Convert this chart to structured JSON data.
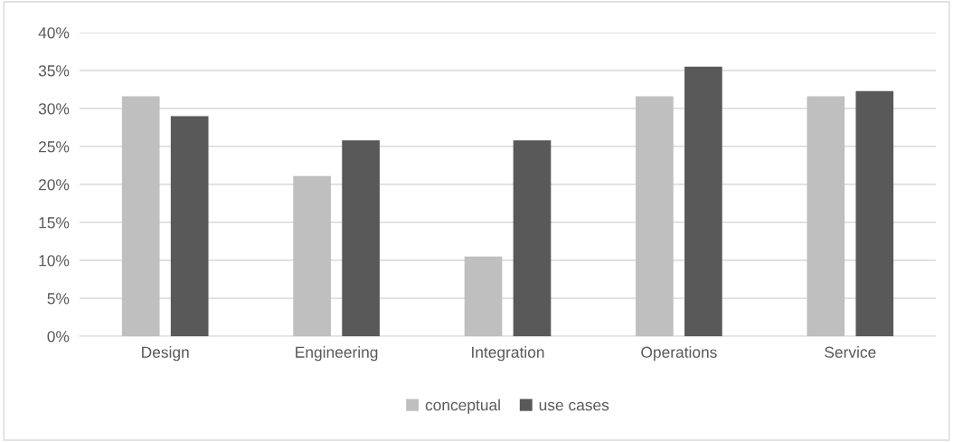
{
  "chart_data": {
    "type": "bar",
    "categories": [
      "Design",
      "Engineering",
      "Integration",
      "Operations",
      "Service"
    ],
    "series": [
      {
        "name": "conceptual",
        "color": "#bfbfbf",
        "values": [
          31.6,
          21.1,
          10.5,
          31.6,
          31.6
        ]
      },
      {
        "name": "use cases",
        "color": "#595959",
        "values": [
          29.0,
          25.8,
          25.8,
          35.5,
          32.3
        ]
      }
    ],
    "ylim": [
      0,
      40
    ],
    "yticks": [
      {
        "value": 0,
        "label": "0%"
      },
      {
        "value": 5,
        "label": "5%"
      },
      {
        "value": 10,
        "label": "10%"
      },
      {
        "value": 15,
        "label": "15%"
      },
      {
        "value": 20,
        "label": "20%"
      },
      {
        "value": 25,
        "label": "25%"
      },
      {
        "value": 30,
        "label": "30%"
      },
      {
        "value": 35,
        "label": "35%"
      },
      {
        "value": 40,
        "label": "40%"
      }
    ],
    "grid": "y",
    "legend": "bottom"
  }
}
